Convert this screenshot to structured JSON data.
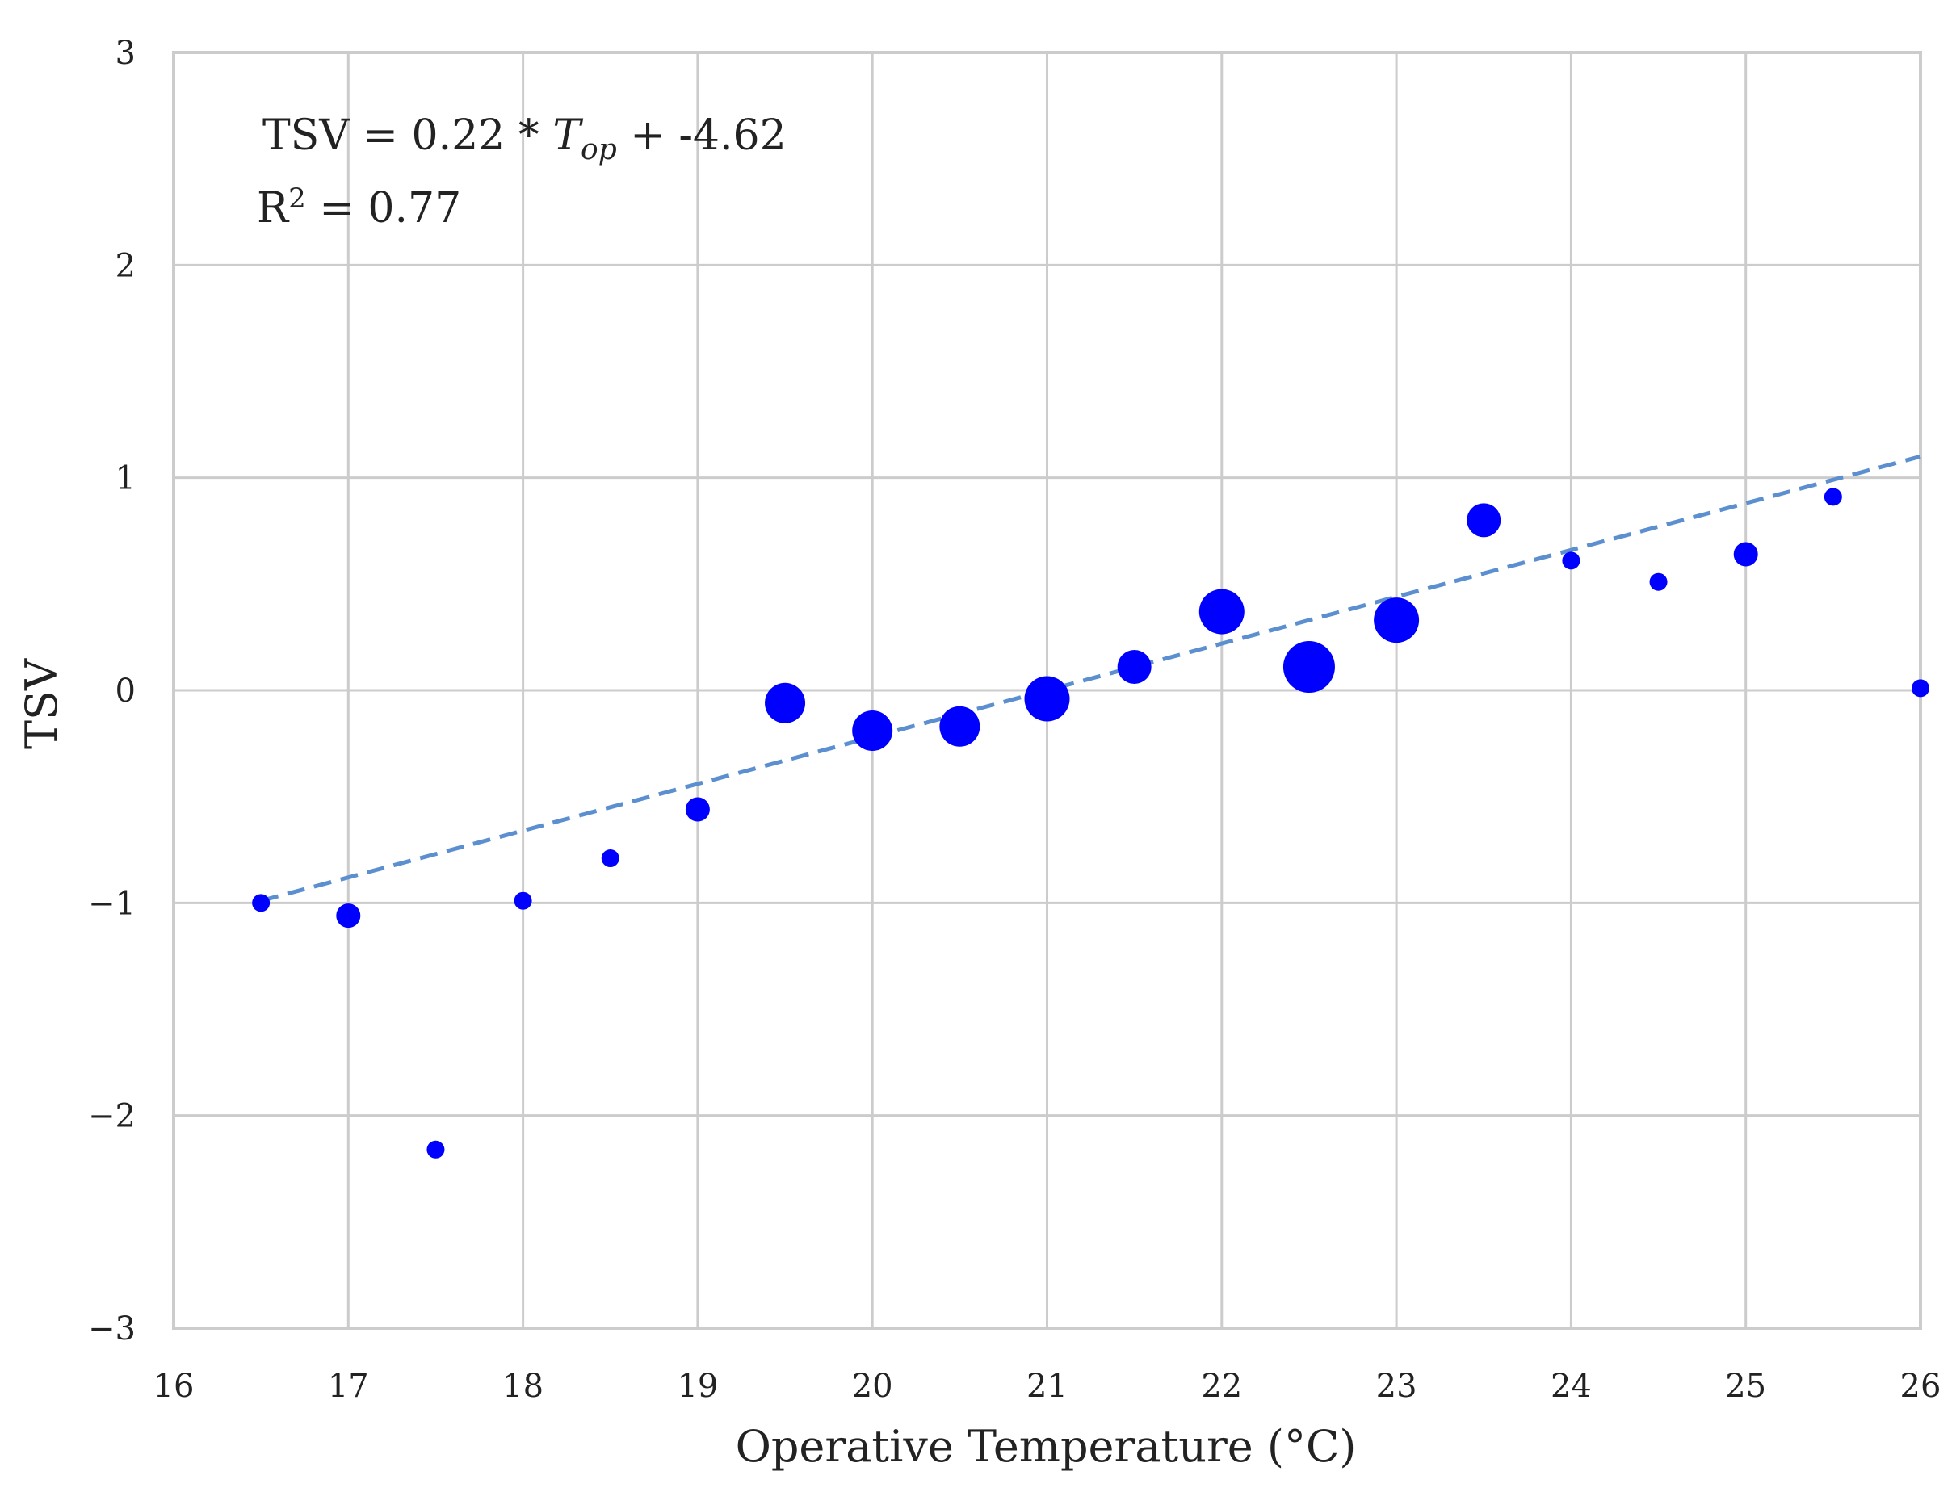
{
  "chart_data": {
    "type": "scatter",
    "title": "",
    "xlabel": "Operative Temperature (°C)",
    "ylabel": "TSV",
    "xlim": [
      16,
      26
    ],
    "ylim": [
      -3,
      3
    ],
    "xticks": [
      16,
      17,
      18,
      19,
      20,
      21,
      22,
      23,
      24,
      25,
      26
    ],
    "yticks": [
      -3,
      -2,
      -1,
      0,
      1,
      2,
      3
    ],
    "xtick_labels": [
      "16",
      "17",
      "18",
      "19",
      "20",
      "21",
      "22",
      "23",
      "24",
      "25",
      "26"
    ],
    "ytick_labels": [
      "−3",
      "−2",
      "−1",
      "0",
      "1",
      "2",
      "3"
    ],
    "grid": true,
    "annotations": {
      "equation_prefix": "TSV = 0.22 * ",
      "equation_var": "T",
      "equation_sub": "op",
      "equation_suffix": " + -4.62",
      "r2_prefix": "R",
      "r2_sup": "2",
      "r2_suffix": " = 0.77"
    },
    "fit_line": {
      "slope": 0.22,
      "intercept": -4.62,
      "x_range": [
        16.5,
        26
      ],
      "style": "dashed",
      "color": "#5b8fd0"
    },
    "points": [
      {
        "x": 16.5,
        "y": -1.0,
        "size": 1
      },
      {
        "x": 17.0,
        "y": -1.06,
        "size": 2
      },
      {
        "x": 17.5,
        "y": -2.16,
        "size": 1
      },
      {
        "x": 18.0,
        "y": -0.99,
        "size": 1
      },
      {
        "x": 18.5,
        "y": -0.79,
        "size": 1
      },
      {
        "x": 19.0,
        "y": -0.56,
        "size": 2
      },
      {
        "x": 19.5,
        "y": -0.06,
        "size": 4
      },
      {
        "x": 20.0,
        "y": -0.19,
        "size": 4
      },
      {
        "x": 20.5,
        "y": -0.17,
        "size": 4
      },
      {
        "x": 21.0,
        "y": -0.04,
        "size": 5
      },
      {
        "x": 21.5,
        "y": 0.11,
        "size": 3
      },
      {
        "x": 22.0,
        "y": 0.37,
        "size": 5
      },
      {
        "x": 22.5,
        "y": 0.11,
        "size": 6
      },
      {
        "x": 23.0,
        "y": 0.33,
        "size": 5
      },
      {
        "x": 23.5,
        "y": 0.8,
        "size": 3
      },
      {
        "x": 24.0,
        "y": 0.61,
        "size": 1
      },
      {
        "x": 24.5,
        "y": 0.51,
        "size": 1
      },
      {
        "x": 25.0,
        "y": 0.64,
        "size": 2
      },
      {
        "x": 25.5,
        "y": 0.91,
        "size": 1
      },
      {
        "x": 26.0,
        "y": 0.01,
        "size": 1
      }
    ],
    "marker_color": "#0000ff",
    "grid_color": "#cccccc",
    "frame_color": "#cccccc"
  }
}
